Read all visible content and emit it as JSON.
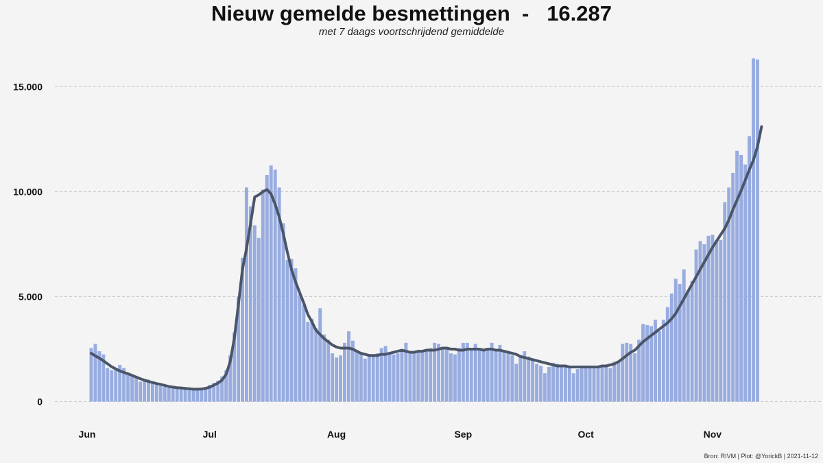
{
  "chart_data": {
    "type": "bar",
    "title": "Nieuw gemelde besmettingen  -   16.287",
    "subtitle": "met 7 daags voortschrijdend gemiddelde",
    "caption": "Bron: RIVM | Plot: @YorickB |  2021-11-12",
    "xlabel": "",
    "ylabel": "",
    "ylim": [
      0,
      16500
    ],
    "yticks": [
      0,
      5000,
      10000,
      15000
    ],
    "ytick_labels": [
      "0",
      "5.000",
      "10.000",
      "15.000"
    ],
    "x_start": "2021-06-01",
    "x_end": "2021-11-12",
    "xtick_dates": [
      "2021-06-01",
      "2021-07-01",
      "2021-08-01",
      "2021-09-01",
      "2021-10-01",
      "2021-11-01"
    ],
    "xtick_labels": [
      "Jun",
      "Jul",
      "Aug",
      "Sep",
      "Oct",
      "Nov"
    ],
    "grid": "horizontal dashed",
    "colors": {
      "bars": "#98ace0",
      "line": "#4a5568",
      "grid": "#c8c8c8",
      "background": "#f4f4f4"
    },
    "series": [
      {
        "kind": "bar",
        "values": [
          2550,
          2750,
          2400,
          2250,
          1600,
          1500,
          1500,
          1750,
          1600,
          1350,
          1300,
          1150,
          950,
          1000,
          1050,
          850,
          800,
          750,
          700,
          650,
          650,
          650,
          600,
          600,
          550,
          550,
          550,
          600,
          700,
          800,
          900,
          1000,
          1200,
          1500,
          2200,
          3300,
          5000,
          6850,
          10200,
          9300,
          8400,
          7800,
          10100,
          10800,
          11250,
          11050,
          10200,
          8500,
          6750,
          6800,
          6350,
          5100,
          4600,
          3800,
          3950,
          3500,
          4450,
          3200,
          2950,
          2300,
          2100,
          2200,
          2800,
          3350,
          2900,
          2450,
          2350,
          2050,
          2150,
          2150,
          2300,
          2550,
          2650,
          2350,
          2250,
          2300,
          2450,
          2800,
          2400,
          2300,
          2400,
          2400,
          2450,
          2550,
          2800,
          2750,
          2550,
          2500,
          2300,
          2250,
          2550,
          2800,
          2800,
          2500,
          2750,
          2550,
          2500,
          2500,
          2800,
          2450,
          2700,
          2400,
          2300,
          2200,
          1800,
          2150,
          2400,
          2150,
          2050,
          1800,
          1700,
          1350,
          1650,
          1850,
          1800,
          1700,
          1700,
          1600,
          1350,
          1550,
          1650,
          1600,
          1600,
          1600,
          1700,
          1650,
          1650,
          1600,
          1900,
          1950,
          2750,
          2800,
          2750,
          2300,
          2950,
          3700,
          3650,
          3600,
          3900,
          3350,
          3900,
          4500,
          5150,
          5850,
          5600,
          6300,
          5300,
          5750,
          7250,
          7650,
          7500,
          7900,
          7950,
          7700,
          7700,
          9500,
          10200,
          10900,
          11950,
          11750,
          11300,
          12650,
          16350,
          16300
        ]
      },
      {
        "kind": "line",
        "values": [
          2300,
          2180,
          2070,
          1940,
          1800,
          1660,
          1560,
          1460,
          1390,
          1330,
          1250,
          1170,
          1090,
          1020,
          960,
          910,
          860,
          820,
          770,
          720,
          690,
          660,
          650,
          630,
          610,
          590,
          590,
          600,
          630,
          690,
          780,
          880,
          1020,
          1300,
          1900,
          3000,
          4600,
          6300,
          7300,
          8500,
          9750,
          9850,
          10000,
          10100,
          9900,
          9400,
          8800,
          8000,
          7100,
          6300,
          5700,
          5200,
          4700,
          4150,
          3800,
          3400,
          3200,
          3000,
          2850,
          2700,
          2600,
          2550,
          2550,
          2550,
          2500,
          2400,
          2300,
          2250,
          2200,
          2200,
          2200,
          2250,
          2250,
          2300,
          2350,
          2400,
          2450,
          2400,
          2350,
          2350,
          2400,
          2400,
          2450,
          2450,
          2450,
          2500,
          2550,
          2550,
          2500,
          2500,
          2450,
          2450,
          2500,
          2500,
          2500,
          2500,
          2450,
          2500,
          2500,
          2450,
          2450,
          2400,
          2350,
          2300,
          2250,
          2150,
          2100,
          2050,
          2000,
          1950,
          1900,
          1850,
          1800,
          1750,
          1700,
          1700,
          1700,
          1650,
          1650,
          1650,
          1650,
          1650,
          1650,
          1650,
          1650,
          1700,
          1700,
          1750,
          1800,
          1900,
          2050,
          2200,
          2350,
          2450,
          2650,
          2850,
          3000,
          3150,
          3300,
          3450,
          3600,
          3750,
          3950,
          4200,
          4550,
          4900,
          5250,
          5600,
          5950,
          6300,
          6650,
          7000,
          7350,
          7650,
          7950,
          8250,
          8650,
          9150,
          9600,
          10050,
          10550,
          11050,
          11500,
          12150,
          13100
        ]
      }
    ]
  }
}
